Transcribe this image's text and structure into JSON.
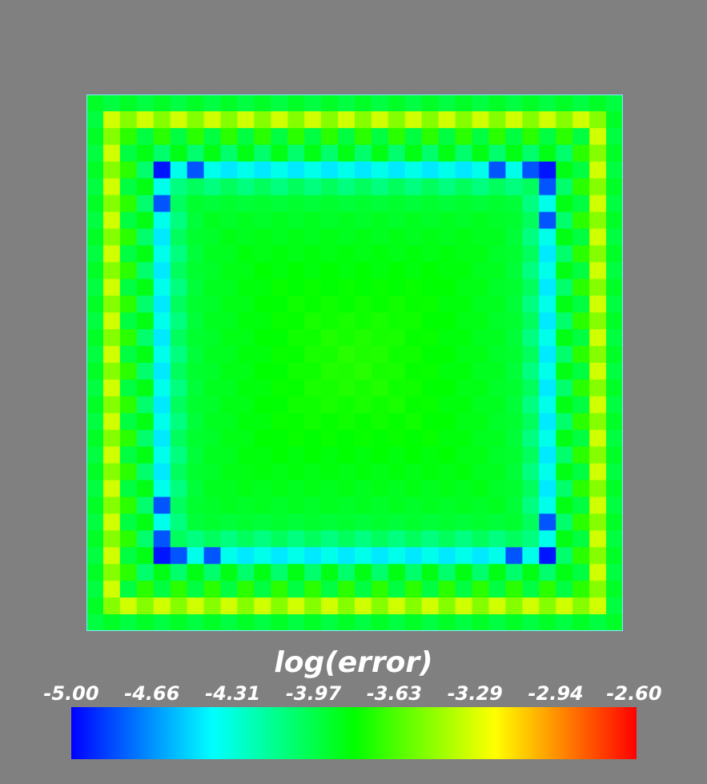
{
  "chart_data": {
    "type": "heatmap",
    "title": "",
    "colorbar": {
      "title": "log(error)",
      "min": -5.0,
      "max": -2.6,
      "tick_labels": [
        "-5.00",
        "-4.66",
        "-4.31",
        "-3.97",
        "-3.63",
        "-3.29",
        "-2.94",
        "-2.60"
      ],
      "colormap": [
        "#0000ff",
        "#00ffff",
        "#00ff00",
        "#ffff00",
        "#ff0000"
      ],
      "orientation": "horizontal",
      "placement": "bottom"
    },
    "grid": {
      "cols": 32,
      "rows": 32,
      "description_regions": {
        "outer_border_ring": {
          "value_range": [
            -3.55,
            -3.3
          ]
        },
        "middle_ring": {
          "value_range": [
            -4.1,
            -3.85
          ]
        },
        "inner_boundary_ring": {
          "value_range": [
            -4.95,
            -4.4
          ]
        },
        "interior_center": {
          "value": -3.72
        },
        "interior_edge": {
          "value": -3.92
        }
      }
    },
    "background_color": "#808080"
  }
}
